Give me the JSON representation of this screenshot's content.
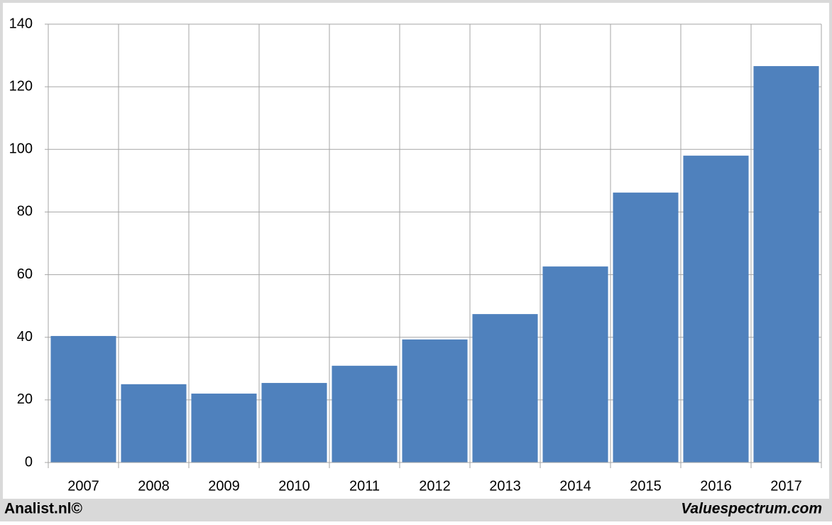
{
  "chart_data": {
    "type": "bar",
    "categories": [
      "2007",
      "2008",
      "2009",
      "2010",
      "2011",
      "2012",
      "2013",
      "2014",
      "2015",
      "2016",
      "2017"
    ],
    "values": [
      40.4,
      25.0,
      22.0,
      25.4,
      30.9,
      39.3,
      47.4,
      62.6,
      86.2,
      98.0,
      126.6
    ],
    "color": "#4f81bd",
    "ylim": [
      0,
      140
    ],
    "yticks": [
      0,
      20,
      40,
      60,
      80,
      100,
      120,
      140
    ],
    "grid": true,
    "annotations": [
      "Analist.nl©",
      "Valuespectrum.com"
    ]
  }
}
